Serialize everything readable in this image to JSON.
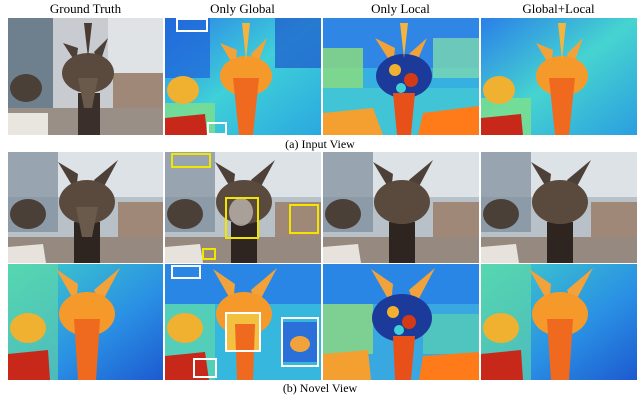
{
  "figure": {
    "columns": [
      "Ground Truth",
      "Only Global",
      "Only Local",
      "Global+Local"
    ],
    "caption_a": "(a) Input View",
    "caption_b": "(b) Novel View"
  },
  "colors": {
    "highlight_white": "#ffffff",
    "highlight_yellow": "#f2e600",
    "depth_near": "#d62a0a",
    "depth_mid": "#f5a020",
    "depth_far": "#1e6be0",
    "skull_dark": "#3a2f28"
  },
  "panels": [
    {
      "name": "input-ground-truth-photo",
      "kind": "photo"
    },
    {
      "name": "input-only-global-depth",
      "kind": "depth"
    },
    {
      "name": "input-only-local-depth",
      "kind": "depth-noisy"
    },
    {
      "name": "input-global-local-depth",
      "kind": "depth"
    },
    {
      "name": "novel-ground-truth-photo",
      "kind": "photo"
    },
    {
      "name": "novel-only-global-photo",
      "kind": "photo"
    },
    {
      "name": "novel-only-local-photo",
      "kind": "photo"
    },
    {
      "name": "novel-global-local-photo",
      "kind": "photo"
    },
    {
      "name": "novel-ground-truth-depth",
      "kind": "depth"
    },
    {
      "name": "novel-only-global-depth",
      "kind": "depth"
    },
    {
      "name": "novel-only-local-depth",
      "kind": "depth-noisy"
    },
    {
      "name": "novel-global-local-depth",
      "kind": "depth"
    }
  ]
}
